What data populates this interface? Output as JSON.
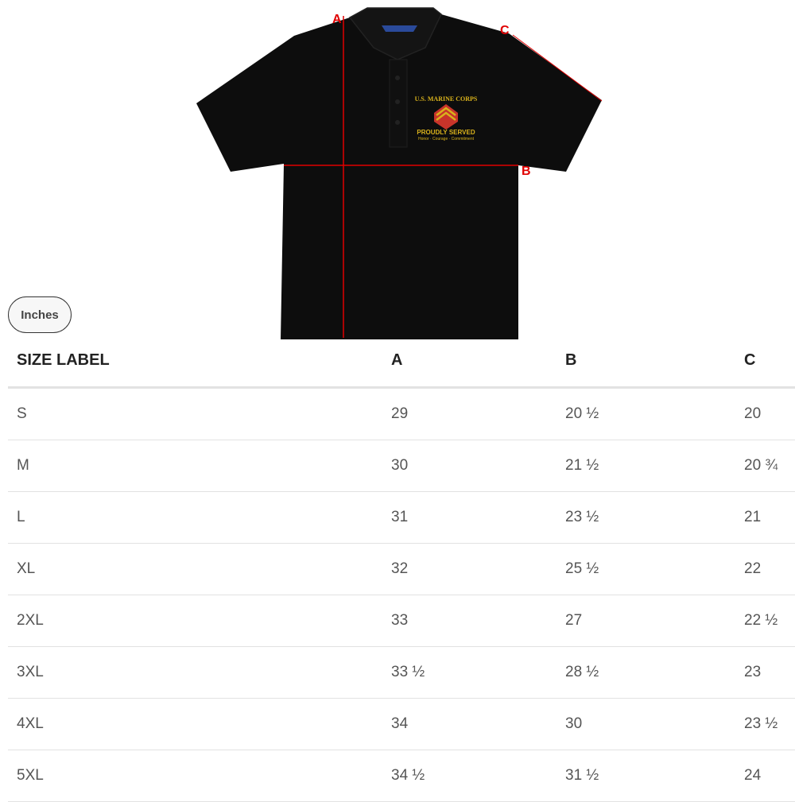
{
  "diagram": {
    "labels": {
      "a": "A",
      "b": "B",
      "c": "C"
    },
    "logo_text": [
      "U.S. MARINE CORPS",
      "PROUDLY SERVED",
      "Honor · Courage · Commitment"
    ],
    "colors": {
      "shirt": "#0d0d0d",
      "measure_line": "#e00000",
      "logo_gold": "#d9b21c",
      "logo_red": "#c8342a"
    }
  },
  "units_button": "Inches",
  "table": {
    "headers": [
      "SIZE LABEL",
      "A",
      "B",
      "C"
    ],
    "rows": [
      [
        "S",
        "29",
        "20 ½",
        "20"
      ],
      [
        "M",
        "30",
        "21 ½",
        "20 ¾"
      ],
      [
        "L",
        "31",
        "23 ½",
        "21"
      ],
      [
        "XL",
        "32",
        "25 ½",
        "22"
      ],
      [
        "2XL",
        "33",
        "27",
        "22 ½"
      ],
      [
        "3XL",
        "33 ½",
        "28 ½",
        "23"
      ],
      [
        "4XL",
        "34",
        "30",
        "23 ½"
      ],
      [
        "5XL",
        "34 ½",
        "31 ½",
        "24"
      ]
    ]
  }
}
